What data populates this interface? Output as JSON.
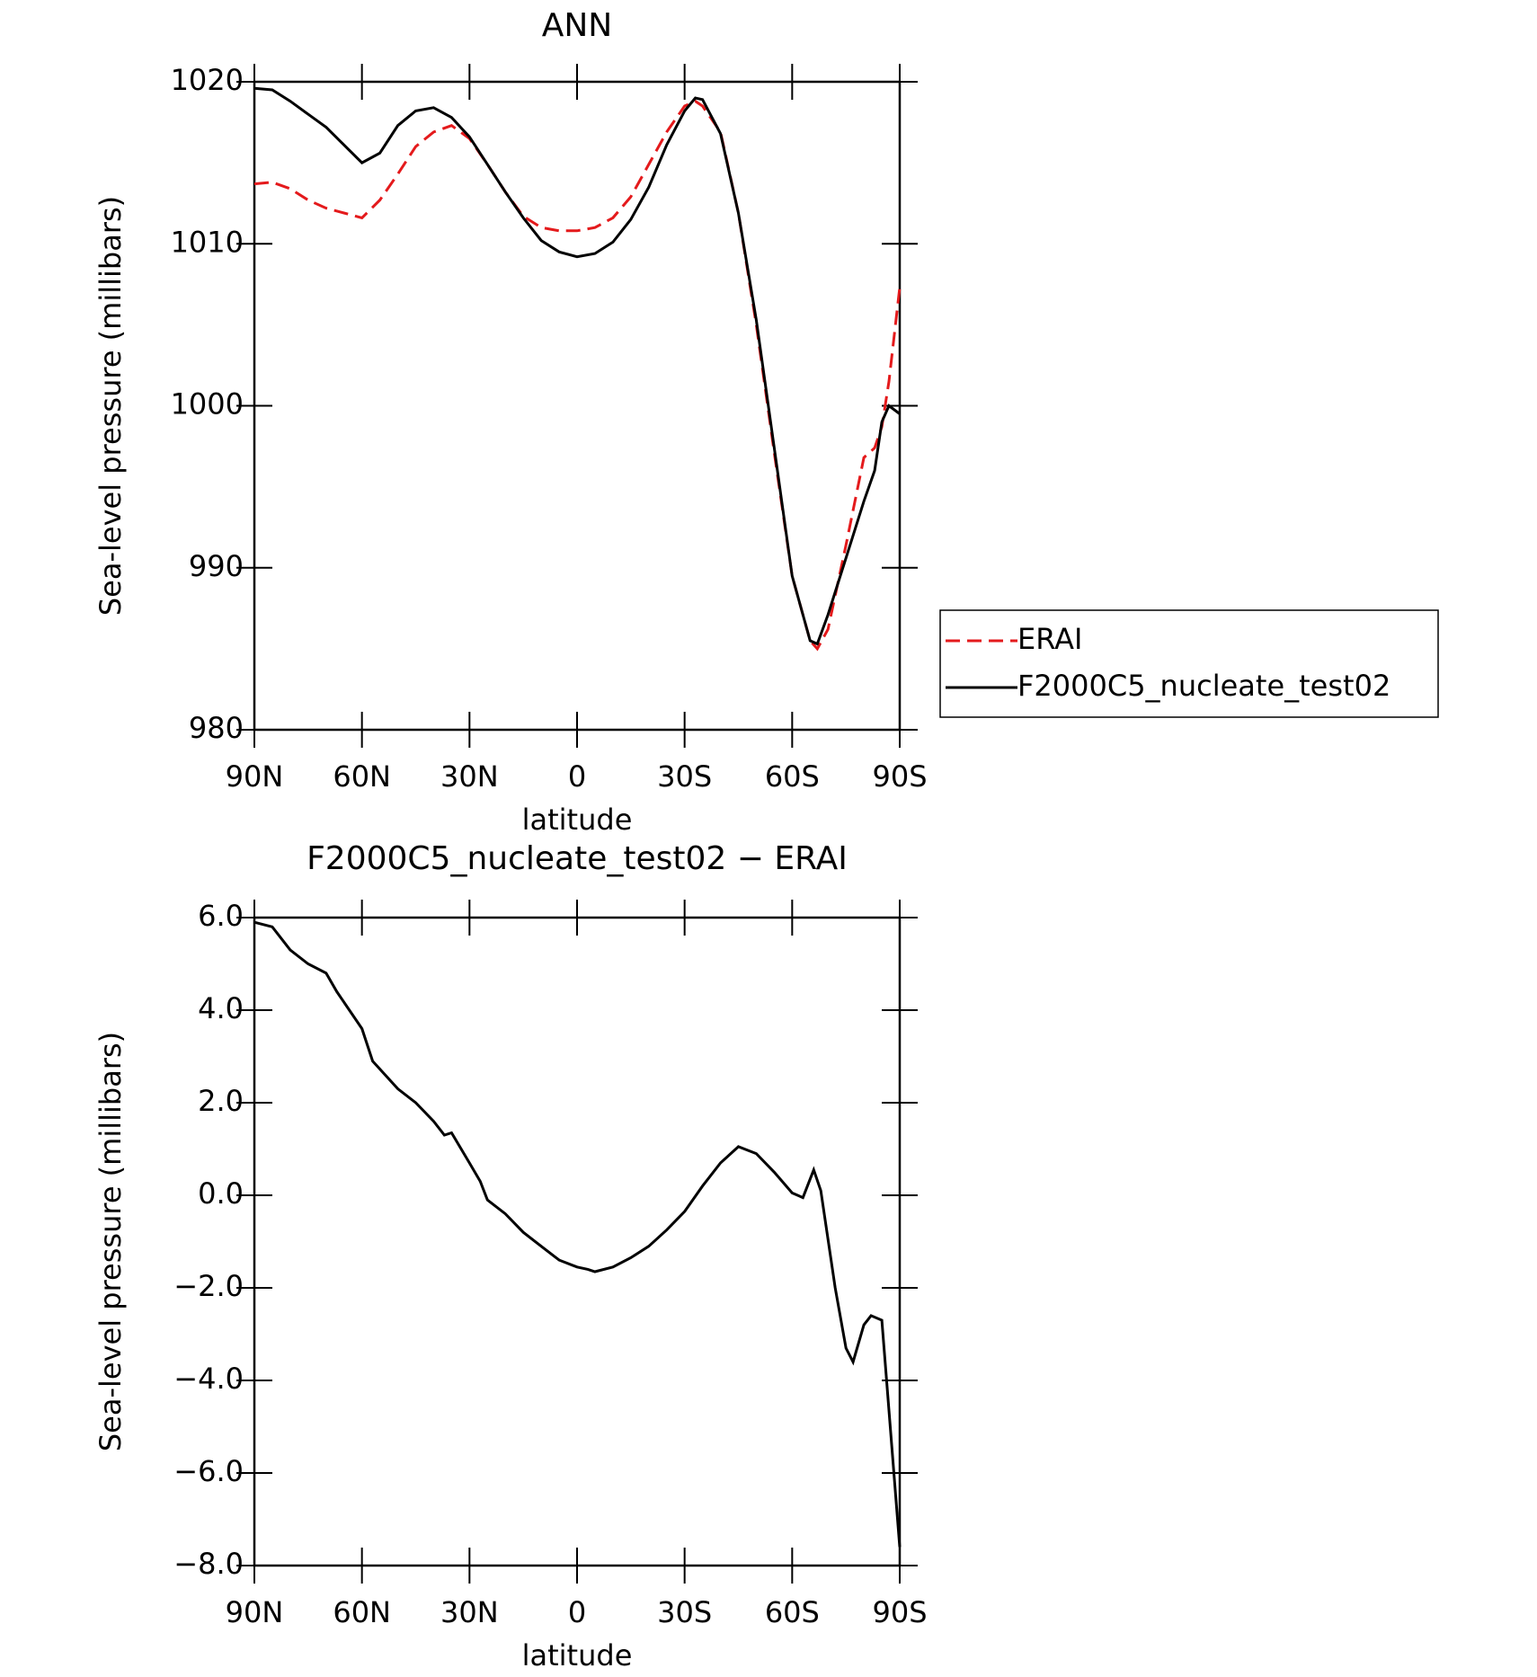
{
  "chart_data": [
    {
      "type": "line",
      "title": "ANN",
      "xlabel": "latitude",
      "ylabel": "Sea-level pressure (millibars)",
      "x": [
        90,
        85,
        80,
        75,
        70,
        65,
        60,
        55,
        50,
        45,
        40,
        35,
        30,
        25,
        20,
        15,
        10,
        5,
        0,
        -5,
        -10,
        -15,
        -20,
        -25,
        -30,
        -33,
        -35,
        -40,
        -45,
        -50,
        -55,
        -60,
        -65,
        -67,
        -70,
        -75,
        -80,
        -83,
        -85,
        -87,
        -90
      ],
      "series": [
        {
          "name": "ERAI",
          "color": "#e41a1c",
          "dash": true,
          "values": [
            1013.7,
            1013.8,
            1013.4,
            1012.7,
            1012.2,
            1011.9,
            1011.6,
            1012.7,
            1014.3,
            1016.0,
            1016.9,
            1017.3,
            1016.5,
            1014.9,
            1013.2,
            1011.7,
            1011.0,
            1010.8,
            1010.8,
            1011.0,
            1011.6,
            1012.9,
            1014.9,
            1016.9,
            1018.5,
            1018.8,
            1018.5,
            1016.9,
            1011.9,
            1005.0,
            997.1,
            989.5,
            985.5,
            985.0,
            986.2,
            991.4,
            996.8,
            997.4,
            998.7,
            1001.5,
            1007.3
          ]
        },
        {
          "name": "F2000C5_nucleate_test02",
          "color": "#000000",
          "dash": false,
          "values": [
            1019.6,
            1019.5,
            1018.8,
            1018.0,
            1017.2,
            1016.1,
            1015.0,
            1015.6,
            1017.3,
            1018.2,
            1018.4,
            1017.8,
            1016.6,
            1014.9,
            1013.2,
            1011.6,
            1010.2,
            1009.5,
            1009.2,
            1009.4,
            1010.1,
            1011.5,
            1013.5,
            1016.1,
            1018.2,
            1019.0,
            1018.9,
            1016.8,
            1011.9,
            1005.3,
            997.4,
            989.5,
            985.5,
            985.3,
            987.1,
            990.6,
            994.1,
            996.0,
            999.0,
            1000.0,
            999.5
          ]
        }
      ],
      "xlim": [
        90,
        -90
      ],
      "xticks": [
        {
          "value": 90,
          "label": "90N"
        },
        {
          "value": 60,
          "label": "60N"
        },
        {
          "value": 30,
          "label": "30N"
        },
        0,
        {
          "value": -30,
          "label": "30S"
        },
        {
          "value": -60,
          "label": "60S"
        },
        {
          "value": -90,
          "label": "90S"
        }
      ],
      "ylim": [
        980,
        1020
      ],
      "yticks": [
        980,
        990,
        1000,
        1010,
        1020
      ],
      "legend": "right"
    },
    {
      "type": "line",
      "title": "F2000C5_nucleate_test02 − ERAI",
      "xlabel": "latitude",
      "ylabel": "Sea-level pressure (millibars)",
      "x": [
        90,
        85,
        80,
        75,
        70,
        67,
        60,
        57,
        50,
        45,
        40,
        37,
        35,
        30,
        27,
        25,
        20,
        15,
        10,
        5,
        0,
        -3,
        -5,
        -10,
        -15,
        -20,
        -25,
        -30,
        -35,
        -40,
        -45,
        -50,
        -55,
        -60,
        -63,
        -66,
        -68,
        -72,
        -75,
        -77,
        -80,
        -82,
        -85,
        -90
      ],
      "series": [
        {
          "name": "F2000C5_nucleate_test02 − ERAI",
          "color": "#000000",
          "dash": false,
          "values": [
            5.9,
            5.8,
            5.3,
            5.0,
            4.8,
            4.4,
            3.6,
            2.9,
            2.3,
            2.0,
            1.6,
            1.3,
            1.35,
            0.7,
            0.3,
            -0.1,
            -0.4,
            -0.8,
            -1.1,
            -1.4,
            -1.55,
            -1.6,
            -1.65,
            -1.55,
            -1.35,
            -1.1,
            -0.75,
            -0.35,
            0.2,
            0.7,
            1.05,
            0.9,
            0.5,
            0.05,
            -0.05,
            0.55,
            0.1,
            -2.0,
            -3.3,
            -3.6,
            -2.8,
            -2.6,
            -2.7,
            -7.6
          ]
        }
      ],
      "xlim": [
        90,
        -90
      ],
      "xticks": [
        {
          "value": 90,
          "label": "90N"
        },
        {
          "value": 60,
          "label": "60N"
        },
        {
          "value": 30,
          "label": "30N"
        },
        0,
        {
          "value": -30,
          "label": "30S"
        },
        {
          "value": -60,
          "label": "60S"
        },
        {
          "value": -90,
          "label": "90S"
        }
      ],
      "ylim": [
        -8,
        6
      ],
      "yticks": [
        {
          "value": -8,
          "label": "−8.0"
        },
        {
          "value": -6,
          "label": "−6.0"
        },
        {
          "value": -4,
          "label": "−4.0"
        },
        {
          "value": -2,
          "label": "−2.0"
        },
        {
          "value": 0,
          "label": "0.0"
        },
        {
          "value": 2,
          "label": "2.0"
        },
        {
          "value": 4,
          "label": "4.0"
        },
        {
          "value": 6,
          "label": "6.0"
        }
      ]
    }
  ]
}
